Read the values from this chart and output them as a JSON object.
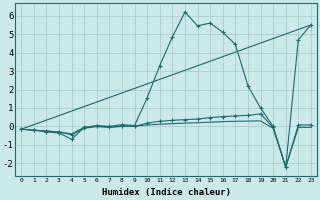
{
  "title": "",
  "xlabel": "Humidex (Indice chaleur)",
  "background_color": "#cce8e8",
  "grid_color": "#aacece",
  "line_color": "#1a6b6b",
  "xlim": [
    -0.5,
    23.5
  ],
  "ylim": [
    -2.7,
    6.7
  ],
  "x_ticks": [
    0,
    1,
    2,
    3,
    4,
    5,
    6,
    7,
    8,
    9,
    10,
    11,
    12,
    13,
    14,
    15,
    16,
    17,
    18,
    19,
    20,
    21,
    22,
    23
  ],
  "y_ticks": [
    -2,
    -1,
    0,
    1,
    2,
    3,
    4,
    5,
    6
  ],
  "series": [
    {
      "x": [
        0,
        1,
        2,
        3,
        4,
        5,
        6,
        7,
        8,
        9,
        10,
        11,
        12,
        13,
        14,
        15,
        16,
        17,
        18,
        19,
        20,
        21,
        22,
        23
      ],
      "y": [
        -0.15,
        -0.2,
        -0.3,
        -0.35,
        -0.7,
        -0.05,
        0.05,
        0.0,
        0.1,
        0.05,
        1.55,
        3.3,
        4.85,
        6.2,
        5.45,
        5.6,
        5.1,
        4.45,
        2.2,
        1.0,
        0.0,
        -2.2,
        4.7,
        5.5
      ],
      "marker": true
    },
    {
      "x": [
        0,
        23
      ],
      "y": [
        -0.15,
        5.5
      ],
      "marker": false
    },
    {
      "x": [
        0,
        1,
        2,
        3,
        4,
        5,
        6,
        7,
        8,
        9,
        10,
        11,
        12,
        13,
        14,
        15,
        16,
        17,
        18,
        19,
        20,
        21,
        22,
        23
      ],
      "y": [
        -0.15,
        -0.2,
        -0.25,
        -0.3,
        -0.45,
        -0.1,
        0.0,
        -0.05,
        0.0,
        0.0,
        0.18,
        0.28,
        0.33,
        0.37,
        0.4,
        0.48,
        0.53,
        0.57,
        0.6,
        0.68,
        -0.05,
        -2.2,
        0.08,
        0.08
      ],
      "marker": true
    },
    {
      "x": [
        0,
        1,
        2,
        3,
        4,
        5,
        6,
        7,
        8,
        9,
        10,
        11,
        12,
        13,
        14,
        15,
        16,
        17,
        18,
        19,
        20,
        21,
        22,
        23
      ],
      "y": [
        -0.15,
        -0.2,
        -0.25,
        -0.3,
        -0.4,
        -0.05,
        0.0,
        -0.03,
        0.02,
        0.02,
        0.08,
        0.12,
        0.15,
        0.18,
        0.2,
        0.23,
        0.26,
        0.28,
        0.29,
        0.3,
        -0.1,
        -2.2,
        -0.05,
        -0.05
      ],
      "marker": false
    }
  ]
}
